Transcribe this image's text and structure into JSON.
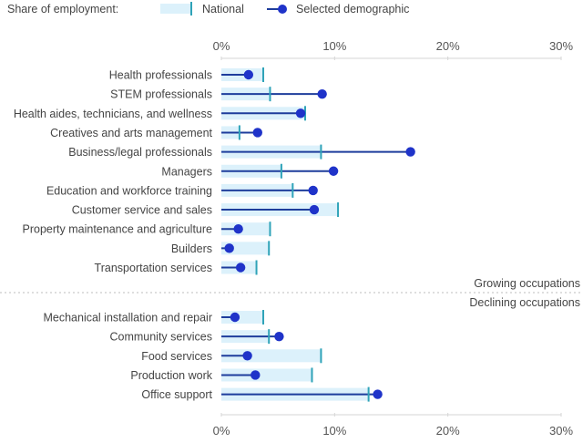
{
  "legend": {
    "title": "Share of employment:",
    "national_label": "National",
    "selected_label": "Selected demographic",
    "national_icon": "light-blue-bar-with-tick",
    "selected_icon": "line-with-dot"
  },
  "chart_data": {
    "type": "dot-range",
    "title": "Share of employment",
    "xlabel": "",
    "ylabel": "",
    "xlim": [
      0,
      30
    ],
    "x_ticks": [
      "0%",
      "10%",
      "20%",
      "30%"
    ],
    "x_tick_values": [
      0,
      10,
      20,
      30
    ],
    "grid": false,
    "legend_position": "top",
    "colors": {
      "national_bar": "#dcf1fb",
      "national_tick": "#2fa3b8",
      "selected_line": "#1e3d9c",
      "selected_dot": "#1f33c9"
    },
    "series_names": [
      "National",
      "Selected demographic"
    ],
    "groups": [
      {
        "name": "Growing occupations",
        "categories": [
          "Health professionals",
          "STEM professionals",
          "Health aides, technicians, and wellness",
          "Creatives and arts management",
          "Business/legal professionals",
          "Managers",
          "Education and workforce training",
          "Customer service and sales",
          "Property maintenance and agriculture",
          "Builders",
          "Transportation services"
        ],
        "national": [
          3.7,
          4.3,
          7.4,
          1.6,
          8.8,
          5.3,
          6.3,
          10.3,
          4.3,
          4.2,
          3.1
        ],
        "selected": [
          2.4,
          8.9,
          7.0,
          3.2,
          16.7,
          9.9,
          8.1,
          8.2,
          1.5,
          0.7,
          1.7
        ]
      },
      {
        "name": "Declining occupations",
        "categories": [
          "Mechanical installation and repair",
          "Community services",
          "Food services",
          "Production work",
          "Office support"
        ],
        "national": [
          3.7,
          4.2,
          8.8,
          8.0,
          13.0
        ],
        "selected": [
          1.2,
          5.1,
          2.3,
          3.0,
          13.8
        ]
      }
    ]
  }
}
